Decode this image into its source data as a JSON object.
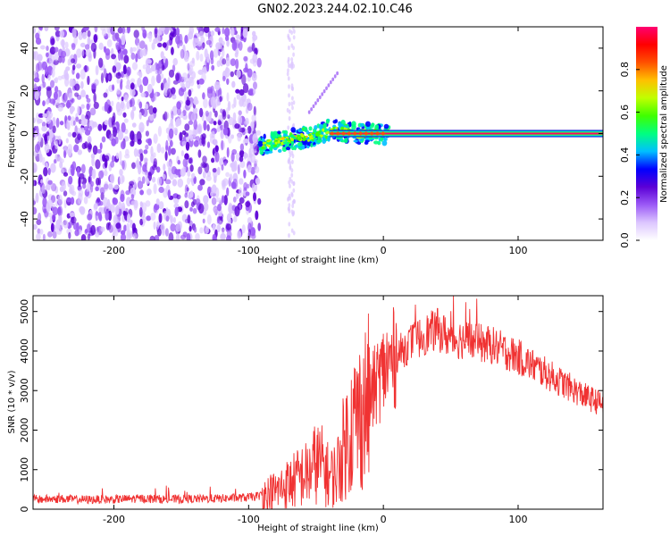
{
  "title": "GN02.2023.244.02.10.C46",
  "chart_data": [
    {
      "type": "heatmap",
      "xlabel": "Height of straight line (km)",
      "ylabel": "Frequency (Hz)",
      "xlim": [
        -260,
        163
      ],
      "ylim": [
        -50,
        50
      ],
      "xticks": [
        -200,
        -100,
        0,
        100
      ],
      "yticks": [
        -40,
        -20,
        0,
        20,
        40
      ],
      "colorbar": {
        "label": "Normalized spectral amplitude",
        "range": [
          0,
          1
        ],
        "ticks": [
          "0.0",
          "0.2",
          "0.4",
          "0.6",
          "0.8"
        ],
        "colors": [
          "#ffffff",
          "#dcc6ff",
          "#9b59f6",
          "#5b00d6",
          "#0000ff",
          "#00c0ff",
          "#00ff80",
          "#40ff00",
          "#c0ff00",
          "#ffc000",
          "#ff5000",
          "#ff0000",
          "#ff0070"
        ]
      },
      "regions": [
        {
          "name": "noise",
          "x": [
            -260,
            -92
          ],
          "freq": [
            -50,
            50
          ],
          "amplitude": 0.15
        },
        {
          "name": "signal-onset",
          "x": [
            -92,
            5
          ],
          "freq": [
            -8,
            8
          ],
          "amplitude": 0.45
        },
        {
          "name": "carrier",
          "x": [
            -35,
            163
          ],
          "freq": [
            -1,
            1
          ],
          "amplitude": 0.85
        }
      ],
      "signal_track": [
        {
          "x": -92,
          "y": -6
        },
        {
          "x": -80,
          "y": -4
        },
        {
          "x": -70,
          "y": -3
        },
        {
          "x": -60,
          "y": -2
        },
        {
          "x": -50,
          "y": -1
        },
        {
          "x": -40,
          "y": 2
        },
        {
          "x": -30,
          "y": 1
        },
        {
          "x": -20,
          "y": 0
        },
        {
          "x": 0,
          "y": 0
        }
      ]
    },
    {
      "type": "line",
      "xlabel": "Height of straight line (km)",
      "ylabel": "SNR (10 * v/v)",
      "xlim": [
        -260,
        163
      ],
      "ylim": [
        0,
        5400
      ],
      "xticks": [
        -200,
        -100,
        0,
        100
      ],
      "yticks": [
        0,
        1000,
        2000,
        3000,
        4000,
        5000
      ],
      "series": [
        {
          "color": "#f03232",
          "x": [
            -260,
            -240,
            -220,
            -200,
            -180,
            -160,
            -140,
            -120,
            -100,
            -90,
            -80,
            -70,
            -60,
            -55,
            -50,
            -45,
            -40,
            -35,
            -30,
            -25,
            -20,
            -15,
            -10,
            -5,
            0,
            10,
            20,
            30,
            40,
            50,
            60,
            70,
            80,
            90,
            100,
            110,
            120,
            130,
            140,
            150,
            163
          ],
          "y": [
            250,
            260,
            240,
            250,
            270,
            250,
            260,
            270,
            300,
            350,
            450,
            650,
            850,
            900,
            1200,
            1100,
            800,
            900,
            1500,
            2000,
            2300,
            2500,
            2800,
            3200,
            3500,
            3900,
            4200,
            4400,
            4550,
            4300,
            4300,
            4200,
            4150,
            4000,
            3850,
            3650,
            3450,
            3250,
            3050,
            2850,
            2650
          ]
        }
      ]
    }
  ]
}
